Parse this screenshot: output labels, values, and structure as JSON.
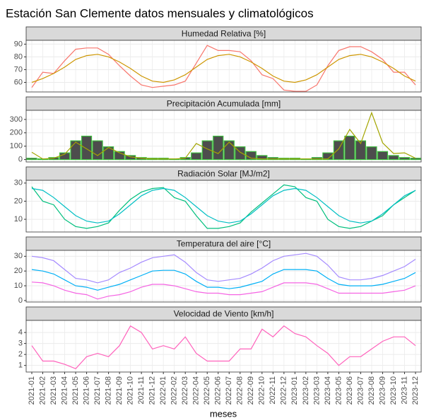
{
  "title": "Estación San Clemente datos mensuales y climatológicos",
  "x_label": "meses",
  "categories": [
    "2021-01",
    "2021-02",
    "2021-03",
    "2021-04",
    "2021-05",
    "2021-06",
    "2021-07",
    "2021-08",
    "2021-09",
    "2021-10",
    "2021-11",
    "2021-12",
    "2022-01",
    "2022-02",
    "2022-03",
    "2022-04",
    "2022-05",
    "2022-06",
    "2022-07",
    "2022-08",
    "2022-09",
    "2022-10",
    "2022-11",
    "2022-12",
    "2023-01",
    "2023-02",
    "2023-03",
    "2023-04",
    "2023-05",
    "2023-06",
    "2023-07",
    "2023-08",
    "2023-09",
    "2023-10",
    "2023-11",
    "2023-12"
  ],
  "chart_data": [
    {
      "type": "line",
      "title": "Humedad Relativa [%]",
      "ylim": [
        52.5,
        93
      ],
      "yticks": [
        60,
        70,
        80,
        90
      ],
      "grid": true,
      "series": [
        {
          "color": "#F8766D",
          "values": [
            56,
            68,
            67,
            77,
            86,
            87,
            87,
            82,
            73,
            65,
            58,
            56,
            57,
            58,
            61,
            75,
            89,
            85,
            85,
            84,
            77,
            66,
            63,
            54,
            53,
            53,
            58,
            73,
            85,
            88,
            88,
            84,
            78,
            68,
            68,
            58
          ]
        },
        {
          "color": "#CD9600",
          "values": [
            60,
            63,
            67,
            72,
            78,
            81,
            82,
            80,
            76,
            71,
            65,
            61,
            60,
            62,
            66,
            72,
            78,
            81,
            82,
            80,
            76,
            71,
            65,
            61,
            60,
            62,
            66,
            72,
            78,
            81,
            82,
            80,
            76,
            71,
            65,
            61
          ]
        }
      ]
    },
    {
      "type": "line",
      "title": "Precipitación Acumulada [mm]",
      "ylim": [
        -18,
        368
      ],
      "yticks": [
        0,
        100,
        200,
        300
      ],
      "grid": true,
      "series": [
        {
          "type": "bar",
          "color": "#4D4D4D",
          "stroke": "#3DBB3D",
          "values": [
            10,
            5,
            15,
            50,
            140,
            175,
            140,
            95,
            60,
            30,
            15,
            10,
            10,
            5,
            15,
            50,
            140,
            175,
            140,
            95,
            60,
            30,
            15,
            10,
            10,
            5,
            15,
            50,
            140,
            175,
            140,
            95,
            60,
            30,
            15,
            10
          ]
        },
        {
          "color": "#A3A500",
          "values": [
            55,
            5,
            10,
            40,
            130,
            80,
            30,
            90,
            50,
            20,
            10,
            5,
            5,
            5,
            10,
            120,
            80,
            45,
            130,
            55,
            10,
            5,
            5,
            5,
            5,
            5,
            5,
            5,
            80,
            225,
            120,
            350,
            125,
            45,
            50,
            10
          ]
        }
      ]
    },
    {
      "type": "line",
      "title": "Radiación Solar [MJ/m2]",
      "ylim": [
        3,
        31.5
      ],
      "yticks": [
        10,
        20,
        30
      ],
      "grid": true,
      "series": [
        {
          "color": "#00BF7D",
          "values": [
            28,
            20,
            18,
            10,
            6,
            5,
            6,
            8,
            15,
            21,
            25,
            27,
            27.5,
            22,
            20,
            12,
            5,
            5,
            6,
            8,
            14,
            19,
            24,
            29,
            28,
            22,
            20,
            10,
            6,
            5,
            6,
            9,
            12,
            18,
            22,
            26
          ]
        },
        {
          "color": "#00BFC4",
          "values": [
            27,
            26,
            22,
            17,
            12,
            9,
            8,
            9,
            13,
            18,
            23,
            26,
            27,
            26,
            22,
            17,
            12,
            9,
            8,
            9,
            13,
            18,
            23,
            26,
            27,
            26,
            22,
            17,
            12,
            9,
            8,
            9,
            13,
            18,
            23,
            26
          ]
        }
      ]
    },
    {
      "type": "line",
      "title": "Temperatura del aire [°C]",
      "ylim": [
        -1,
        34
      ],
      "yticks": [
        0,
        10,
        20,
        30
      ],
      "grid": true,
      "series": [
        {
          "color": "#A58AFF",
          "values": [
            30,
            29,
            27,
            21,
            15,
            14,
            12,
            14,
            19,
            22,
            26,
            29,
            30,
            31,
            26,
            19,
            14,
            13,
            14,
            15,
            18,
            22,
            27,
            30,
            31,
            32,
            30,
            24,
            16,
            14,
            14,
            15,
            17,
            20,
            23,
            28
          ]
        },
        {
          "color": "#00B0F6",
          "values": [
            21,
            20,
            18,
            14,
            10,
            9,
            7,
            9,
            11,
            14,
            17,
            20,
            20.5,
            20.5,
            18,
            13,
            9,
            9,
            8,
            9,
            11,
            13,
            18,
            21,
            21,
            21,
            20,
            15,
            11,
            10,
            10,
            10,
            11,
            13,
            15,
            19
          ]
        },
        {
          "color": "#F564E3",
          "values": [
            12.5,
            12,
            10,
            7,
            5,
            4,
            1,
            3,
            4,
            6,
            9,
            11,
            11,
            10,
            8,
            6,
            5,
            5,
            4,
            4,
            5,
            6,
            9,
            12,
            12,
            12,
            11,
            8,
            5,
            5,
            5,
            5,
            5,
            6,
            7,
            10
          ]
        }
      ]
    },
    {
      "type": "line",
      "title": "Velocidad de Viento [km/h]",
      "ylim": [
        0.4,
        5.1
      ],
      "yticks": [
        1,
        2,
        3,
        4
      ],
      "grid": true,
      "series": [
        {
          "color": "#FF62BC",
          "values": [
            2.8,
            1.4,
            1.4,
            1.1,
            0.7,
            1.8,
            2.1,
            1.8,
            2.8,
            4.6,
            4.0,
            2.5,
            2.8,
            2.5,
            3.6,
            2.1,
            1.4,
            1.4,
            1.4,
            2.5,
            2.5,
            4.3,
            3.6,
            4.6,
            3.9,
            3.6,
            2.8,
            2.1,
            1.0,
            1.8,
            1.8,
            2.5,
            3.2,
            3.6,
            3.6,
            2.8
          ]
        }
      ]
    }
  ]
}
